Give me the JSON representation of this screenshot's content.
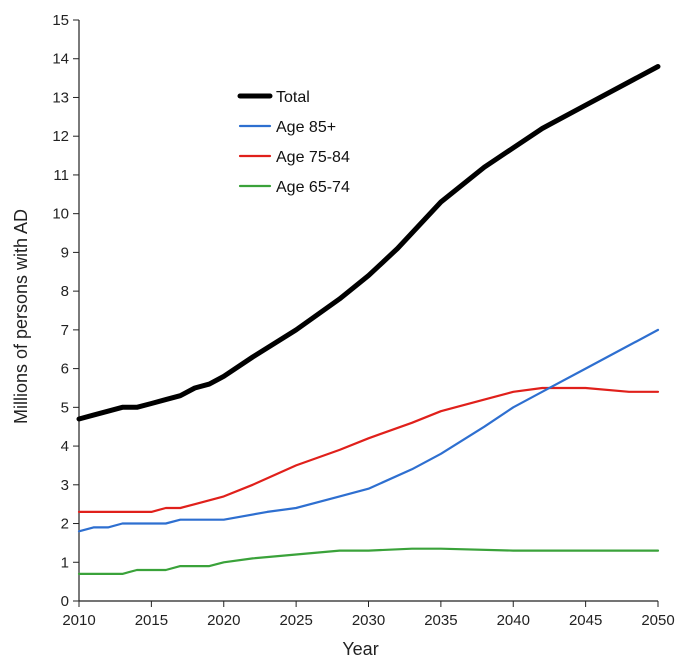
{
  "chart_data": {
    "type": "line",
    "title": "",
    "xlabel": "Year",
    "ylabel": "Millions of persons with AD",
    "xlim": [
      2010,
      2050
    ],
    "ylim": [
      0,
      15
    ],
    "x_ticks": [
      2010,
      2015,
      2020,
      2025,
      2030,
      2035,
      2040,
      2045,
      2050
    ],
    "y_ticks": [
      0,
      1,
      2,
      3,
      4,
      5,
      6,
      7,
      8,
      9,
      10,
      11,
      12,
      13,
      14,
      15
    ],
    "grid": false,
    "legend_position": "upper-left",
    "series": [
      {
        "name": "Total",
        "color": "#000000",
        "x": [
          2010,
          2011,
          2012,
          2013,
          2014,
          2015,
          2016,
          2017,
          2018,
          2019,
          2020,
          2022,
          2025,
          2028,
          2030,
          2032,
          2035,
          2038,
          2040,
          2042,
          2045,
          2048,
          2050
        ],
        "values": [
          4.7,
          4.8,
          4.9,
          5.0,
          5.0,
          5.1,
          5.2,
          5.3,
          5.5,
          5.6,
          5.8,
          6.3,
          7.0,
          7.8,
          8.4,
          9.1,
          10.3,
          11.2,
          11.7,
          12.2,
          12.8,
          13.4,
          13.8
        ]
      },
      {
        "name": "Age 85+",
        "color": "#2e6fd0",
        "x": [
          2010,
          2011,
          2012,
          2013,
          2015,
          2016,
          2017,
          2020,
          2023,
          2025,
          2028,
          2030,
          2033,
          2035,
          2038,
          2040,
          2042,
          2045,
          2048,
          2050
        ],
        "values": [
          1.8,
          1.9,
          1.9,
          2.0,
          2.0,
          2.0,
          2.1,
          2.1,
          2.3,
          2.4,
          2.7,
          2.9,
          3.4,
          3.8,
          4.5,
          5.0,
          5.4,
          6.0,
          6.6,
          7.0
        ]
      },
      {
        "name": "Age 75-84",
        "color": "#e0201b",
        "x": [
          2010,
          2012,
          2015,
          2016,
          2017,
          2018,
          2020,
          2022,
          2025,
          2028,
          2030,
          2033,
          2035,
          2038,
          2040,
          2042,
          2045,
          2048,
          2050
        ],
        "values": [
          2.3,
          2.3,
          2.3,
          2.4,
          2.4,
          2.5,
          2.7,
          3.0,
          3.5,
          3.9,
          4.2,
          4.6,
          4.9,
          5.2,
          5.4,
          5.5,
          5.5,
          5.4,
          5.4
        ]
      },
      {
        "name": "Age 65-74",
        "color": "#3aa23a",
        "x": [
          2010,
          2012,
          2013,
          2014,
          2016,
          2017,
          2019,
          2020,
          2022,
          2025,
          2028,
          2030,
          2033,
          2035,
          2040,
          2045,
          2050
        ],
        "values": [
          0.7,
          0.7,
          0.7,
          0.8,
          0.8,
          0.9,
          0.9,
          1.0,
          1.1,
          1.2,
          1.3,
          1.3,
          1.35,
          1.35,
          1.3,
          1.3,
          1.3
        ]
      }
    ]
  }
}
